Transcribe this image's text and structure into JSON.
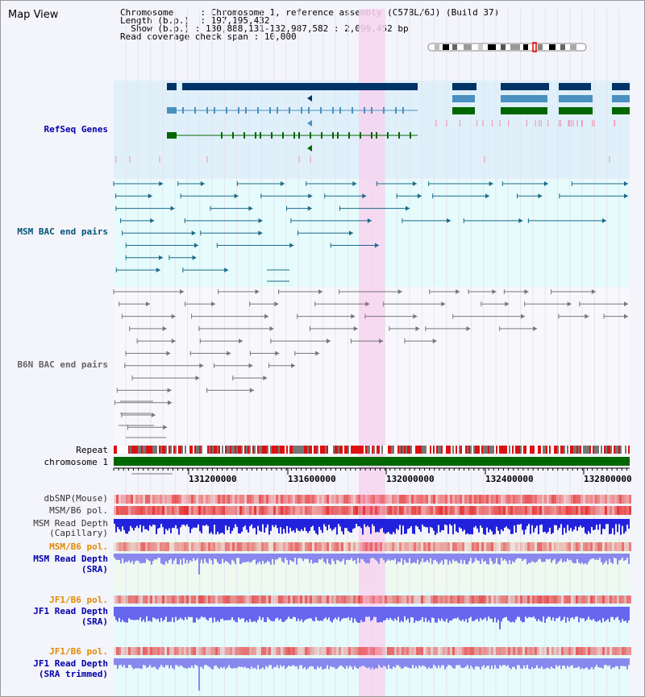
{
  "view_title": "Map View",
  "info": {
    "chromosome_label": "Chromosome",
    "chromosome_value": "Chromosome 1, reference assembly (C57BL/6J) (Build 37)",
    "length_label": "Length (b.p.)",
    "length_value": "197,195,432",
    "show_label": "Show (b.p.)",
    "show_value": "130,888,131-132,987,582 : 2,099,452 bp",
    "coverage_label": "Read coverage check span",
    "coverage_value": "10,000"
  },
  "tracks": {
    "refseq": "RefSeq Genes",
    "msm_bac": "MSM BAC end pairs",
    "b6n_bac": "B6N BAC end pairs",
    "repeat": "Repeat",
    "chromosome": "chromosome 1",
    "dbsnp": "dbSNP(Mouse)",
    "msm_b6_pol": "MSM/B6 pol.",
    "msm_read_depth_cap_1": "MSM Read Depth",
    "msm_read_depth_cap_2": "(Capillary)",
    "msm_b6_pol_sra": "MSM/B6 pol.",
    "msm_read_depth_sra_1": "MSM Read Depth",
    "msm_read_depth_sra_2": "(SRA)",
    "jf1_b6_pol": "JF1/B6 pol.",
    "jf1_read_depth_1": "JF1 Read Depth",
    "jf1_read_depth_2": "(SRA)",
    "jf1_b6_pol_2": "JF1/B6 pol.",
    "jf1_trimmed_1": "JF1 Read Depth",
    "jf1_trimmed_2": "(SRA trimmed)"
  },
  "axis_ticks": [
    "131200000",
    "131600000",
    "132000000",
    "132400000",
    "132800000"
  ],
  "colors": {
    "refseq_bg": "#dff0fa",
    "msm_bac_bg": "#e6fbfb",
    "highlight": "#f7d4f0",
    "chromosome_bar": "#006600",
    "refseq_dark": "#003366",
    "refseq_light": "#4a90c0",
    "refseq_green": "#006600",
    "label_blue": "#0000aa",
    "label_teal": "#005577",
    "label_orange": "#e08a00"
  }
}
